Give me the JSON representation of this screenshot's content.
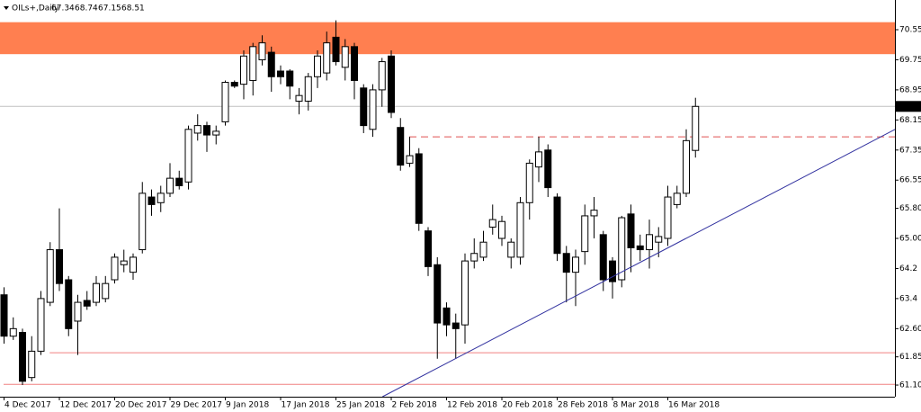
{
  "chart_data": {
    "type": "candlestick",
    "symbol": "OILs+,Daily",
    "categories": [
      "4 Dec 2017",
      null,
      null,
      null,
      null,
      null,
      "12 Dec 2017",
      null,
      null,
      null,
      null,
      null,
      "20 Dec 2017",
      null,
      null,
      null,
      null,
      null,
      "29 Dec 2017",
      null,
      null,
      null,
      null,
      null,
      "9 Jan 2018",
      null,
      null,
      null,
      null,
      null,
      "17 Jan 2018",
      null,
      null,
      null,
      null,
      null,
      "25 Jan 2018",
      null,
      null,
      null,
      null,
      null,
      "2 Feb 2018",
      null,
      null,
      null,
      null,
      null,
      "12 Feb 2018",
      null,
      null,
      null,
      null,
      null,
      "20 Feb 2018",
      null,
      null,
      null,
      null,
      null,
      "28 Feb 2018",
      null,
      null,
      null,
      null,
      null,
      "8 Mar 2018",
      null,
      null,
      null,
      null,
      null,
      "16 Mar 2018",
      null,
      null,
      null
    ],
    "open": [
      63.5,
      62.4,
      62.5,
      61.3,
      62.0,
      63.3,
      64.7,
      63.9,
      62.8,
      63.35,
      63.3,
      63.4,
      63.9,
      64.3,
      64.1,
      64.7,
      66.1,
      65.95,
      66.2,
      66.6,
      66.5,
      67.8,
      68.0,
      67.75,
      68.1,
      69.15,
      69.1,
      69.2,
      69.75,
      69.95,
      69.45,
      69.45,
      68.65,
      68.65,
      69.3,
      69.4,
      70.35,
      69.55,
      70.1,
      69.0,
      67.9,
      68.95,
      69.85,
      67.95,
      67.0,
      67.25,
      65.2,
      64.3,
      63.15,
      62.75,
      62.7,
      64.4,
      64.5,
      65.3,
      65.0,
      64.5,
      64.5,
      65.95,
      66.9,
      67.35,
      66.1,
      64.6,
      64.1,
      64.65,
      65.6,
      65.1,
      64.4,
      63.9,
      65.65,
      64.8,
      64.7,
      64.9,
      65.0,
      65.9,
      66.2,
      67.34
    ],
    "high": [
      63.7,
      62.9,
      62.6,
      62.4,
      63.6,
      64.9,
      65.8,
      64.0,
      63.5,
      63.6,
      64.0,
      64.0,
      64.6,
      64.7,
      64.6,
      66.5,
      66.3,
      66.4,
      67.0,
      66.8,
      68.0,
      68.3,
      68.1,
      68.0,
      69.2,
      69.2,
      70.0,
      70.2,
      70.4,
      70.1,
      69.6,
      69.5,
      69.0,
      69.4,
      70.0,
      70.5,
      70.8,
      70.3,
      70.2,
      69.1,
      69.1,
      69.8,
      70.0,
      68.2,
      67.7,
      67.4,
      65.3,
      64.5,
      63.3,
      63.0,
      64.6,
      65.0,
      65.2,
      65.9,
      65.6,
      65.0,
      66.1,
      67.1,
      67.7,
      67.5,
      66.2,
      64.8,
      64.7,
      65.9,
      66.1,
      65.2,
      64.5,
      65.6,
      65.9,
      65.1,
      65.5,
      65.3,
      66.4,
      66.4,
      67.9,
      68.74
    ],
    "low": [
      62.2,
      62.3,
      61.1,
      61.2,
      61.9,
      63.2,
      63.6,
      62.4,
      61.9,
      63.1,
      63.2,
      63.3,
      63.8,
      64.1,
      63.9,
      64.6,
      65.6,
      65.7,
      66.1,
      66.3,
      66.3,
      67.6,
      67.3,
      67.5,
      68.0,
      69.0,
      68.7,
      68.8,
      69.6,
      68.9,
      69.1,
      68.7,
      68.3,
      68.4,
      69.0,
      69.2,
      69.6,
      69.2,
      68.7,
      67.8,
      67.7,
      68.5,
      68.2,
      66.8,
      66.9,
      65.2,
      64.0,
      61.8,
      62.4,
      61.8,
      62.2,
      64.2,
      64.4,
      65.1,
      64.8,
      64.2,
      64.3,
      65.5,
      66.5,
      66.1,
      64.4,
      63.3,
      63.2,
      64.3,
      65.0,
      63.6,
      63.4,
      63.7,
      64.1,
      64.4,
      64.2,
      64.5,
      64.8,
      65.8,
      66.1,
      67.15
    ],
    "close": [
      62.4,
      62.6,
      61.2,
      62.0,
      63.4,
      64.7,
      63.8,
      62.6,
      63.3,
      63.2,
      63.8,
      63.8,
      64.5,
      64.4,
      64.5,
      66.2,
      65.9,
      66.2,
      66.6,
      66.4,
      67.9,
      68.0,
      67.75,
      67.85,
      69.15,
      69.05,
      69.85,
      70.1,
      70.2,
      69.3,
      69.3,
      69.05,
      68.8,
      69.3,
      69.85,
      70.2,
      69.7,
      70.1,
      69.2,
      68.0,
      68.95,
      69.7,
      68.35,
      66.95,
      67.2,
      65.4,
      64.25,
      62.75,
      62.7,
      62.6,
      64.4,
      64.6,
      64.9,
      65.5,
      65.45,
      64.9,
      65.95,
      67.0,
      67.3,
      66.35,
      64.6,
      64.1,
      64.5,
      65.6,
      65.75,
      63.9,
      63.85,
      65.55,
      64.75,
      64.7,
      65.1,
      65.05,
      66.1,
      66.2,
      67.6,
      68.51
    ],
    "ylim": [
      60.79,
      71.34
    ],
    "yticks": [
      {
        "value": 61.1,
        "label": "61.10"
      },
      61.85,
      {
        "value": 62.6,
        "label": "62.60"
      },
      63.4,
      64.2,
      {
        "value": 65.0,
        "label": "65.00"
      },
      {
        "value": 65.8,
        "label": "65.80"
      },
      66.55,
      67.35,
      68.15,
      68.95,
      69.75,
      70.55
    ],
    "zone": {
      "values": [
        69.9,
        70.75
      ],
      "color": "#ff7f50"
    },
    "levels": [
      {
        "value": 61.96,
        "start": 5,
        "color": "#f08080"
      },
      {
        "value": 61.12,
        "start": 0,
        "color": "#f08080"
      }
    ],
    "dashed_level": {
      "value": 67.7,
      "start": 44,
      "color": "#e05050"
    },
    "trendline": {
      "x": [
        41.1,
        96.7
      ],
      "values": [
        60.79,
        67.9
      ],
      "color": "#3333a0"
    }
  }
}
